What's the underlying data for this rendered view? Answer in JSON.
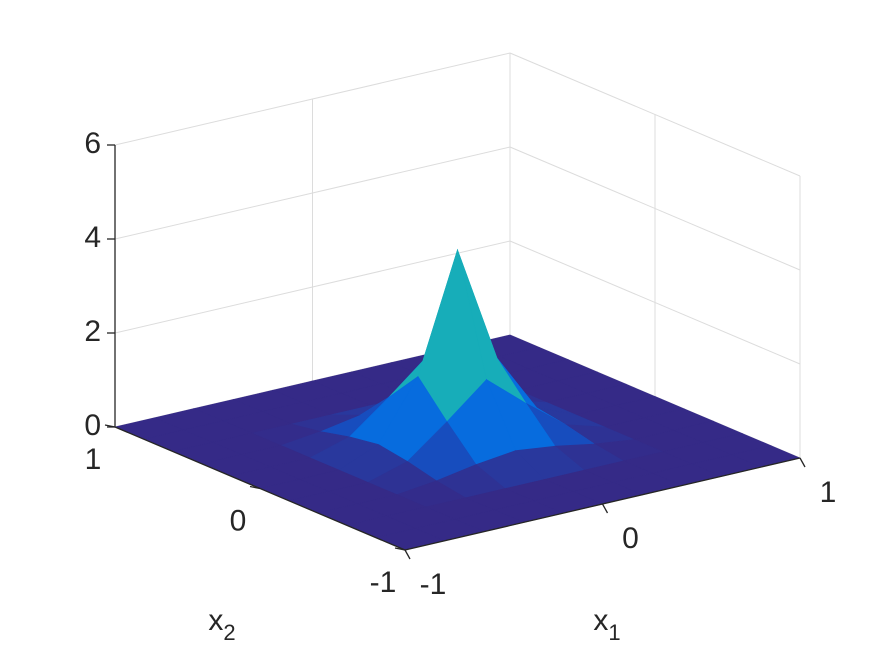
{
  "chart_data": {
    "type": "surface",
    "xlabel": [
      "x",
      "1"
    ],
    "ylabel": [
      "x",
      "2"
    ],
    "x": [
      -1,
      -0.8,
      -0.6,
      -0.4,
      -0.2,
      0,
      0.2,
      0.4,
      0.6,
      0.8,
      1
    ],
    "y": [
      -1,
      -0.8,
      -0.6,
      -0.4,
      -0.2,
      0,
      0.2,
      0.4,
      0.6,
      0.8,
      1
    ],
    "z": [
      [
        0,
        0,
        0,
        0,
        0,
        0,
        0,
        0,
        0,
        0,
        0
      ],
      [
        0,
        0,
        0,
        0,
        0,
        0,
        0,
        0,
        0,
        0,
        0
      ],
      [
        0,
        0,
        0,
        0,
        0,
        0,
        0,
        0,
        0,
        0,
        0
      ],
      [
        0,
        0,
        0,
        0.1,
        0.25,
        0.35,
        0.25,
        0.1,
        0,
        0,
        0
      ],
      [
        0,
        0,
        0,
        0.25,
        0.9,
        1.6,
        0.9,
        0.25,
        0,
        0,
        0
      ],
      [
        0,
        0,
        0,
        0.35,
        1.6,
        4.1,
        1.6,
        0.35,
        0,
        0,
        0
      ],
      [
        0,
        0,
        0,
        0.25,
        0.9,
        1.6,
        0.9,
        0.25,
        0,
        0,
        0
      ],
      [
        0,
        0,
        0,
        0.1,
        0.25,
        0.35,
        0.25,
        0.1,
        0,
        0,
        0
      ],
      [
        0,
        0,
        0,
        0,
        0,
        0,
        0,
        0,
        0,
        0,
        0
      ],
      [
        0,
        0,
        0,
        0,
        0,
        0,
        0,
        0,
        0,
        0,
        0
      ],
      [
        0,
        0,
        0,
        0,
        0,
        0,
        0,
        0,
        0,
        0,
        0
      ]
    ],
    "xlim": [
      -1,
      1
    ],
    "ylim": [
      -1,
      1
    ],
    "zlim": [
      0,
      6
    ],
    "xticks": [
      -1,
      0,
      1
    ],
    "yticks": [
      -1,
      0,
      1
    ],
    "zticks": [
      0,
      2,
      4,
      6
    ],
    "grid": true,
    "colormap": "parula"
  }
}
